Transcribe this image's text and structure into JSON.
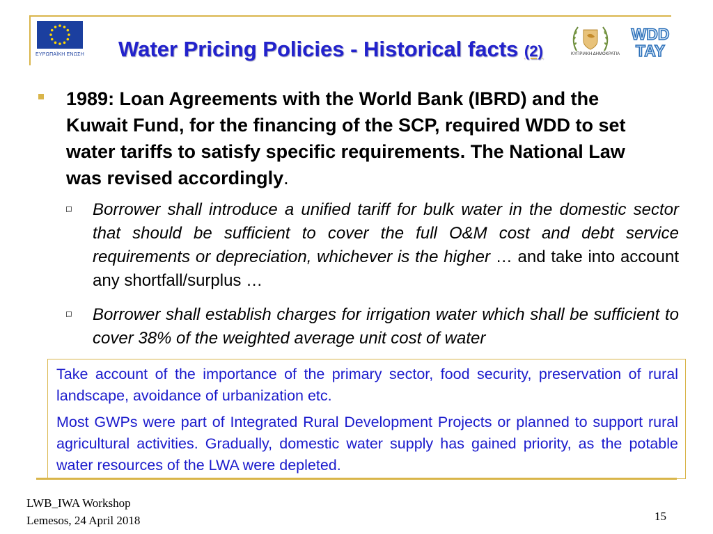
{
  "header": {
    "eu_caption": "ΕΥΡΩΠΑΪΚΗ ΕΝΩΣΗ",
    "title": "Water Pricing Policies - Historical facts",
    "title_suffix": "(2)",
    "cy_caption": "ΚΥΠΡΙΑΚΗ ΔΗΜΟΚΡΑΤΙΑ",
    "wdd_top": "WDD",
    "wdd_bottom": "ΤΑΥ",
    "accent_color": "#d9b54a",
    "title_color": "#2222cc"
  },
  "main": {
    "bullet": {
      "bold_text": "1989: Loan Agreements with the World Bank (IBRD) and the Kuwait Fund, for the financing of the SCP, required WDD to set water tariffs to satisfy specific requirements. The National Law was revised accordingly",
      "end": "."
    },
    "sub_bullets": [
      {
        "italic": "Borrower shall introduce a unified tariff for bulk water in the domestic sector that should be sufficient to cover the full O&M cost and debt service requirements or depreciation, whichever is the higher",
        "plain": " … and take into account any shortfall/surplus …"
      },
      {
        "italic": "Borrower shall establish charges for irrigation water which shall be sufficient to cover 38% of the weighted average unit cost of water",
        "plain": ""
      }
    ],
    "info_box": {
      "paragraph1": "Take account of the importance of the primary sector, food security, preservation of rural landscape, avoidance of urbanization etc.",
      "paragraph2": "Most GWPs were part of Integrated Rural Development Projects or planned to support rural agricultural activities. Gradually, domestic water supply has gained priority, as the potable water resources of the LWA were depleted.",
      "text_color": "#1a1acc"
    }
  },
  "footer": {
    "line1": "LWB_IWA Workshop",
    "line2": "Lemesos, 24 April 2018",
    "page_number": "15"
  }
}
